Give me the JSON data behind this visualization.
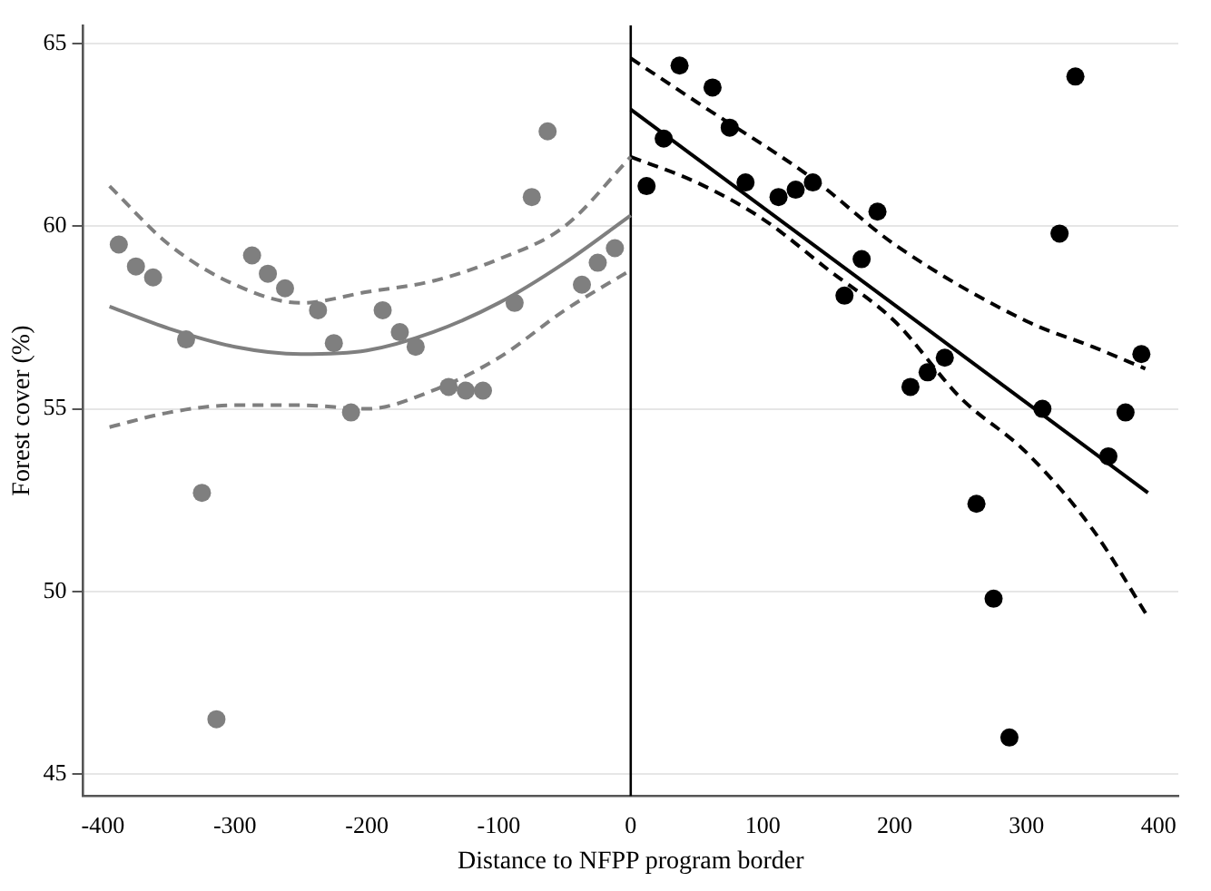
{
  "chart_data": {
    "type": "scatter",
    "xlabel": "Distance to NFPP program border",
    "ylabel": "Forest cover (%)",
    "xlim": [
      -415,
      415
    ],
    "ylim": [
      44.4,
      65.5
    ],
    "xticks": [
      -400,
      -300,
      -200,
      -100,
      0,
      100,
      200,
      300,
      400
    ],
    "yticks": [
      45,
      50,
      55,
      60,
      65
    ],
    "grid": "y",
    "legend": false,
    "marker": "circle",
    "ref_lines": [
      {
        "axis": "x",
        "value": 0,
        "color": "#000000"
      }
    ],
    "series": [
      {
        "type": "scatter",
        "color": "#7f7f7f",
        "x": [
          -388,
          -362,
          -337,
          -314,
          -287,
          -262,
          -237,
          -212,
          -188,
          -163,
          -138,
          -112,
          -88,
          -63,
          -37,
          -12
        ],
        "values": [
          59.5,
          58.6,
          56.9,
          46.5,
          59.2,
          58.3,
          57.7,
          54.9,
          57.7,
          56.7,
          55.6,
          55.5,
          57.9,
          62.6,
          58.4,
          59.4
        ]
      },
      {
        "type": "scatter",
        "color": "#7f7f7f",
        "x": [
          -375,
          -325,
          -275,
          -225,
          -175,
          -125,
          -75,
          -25
        ],
        "values": [
          58.9,
          52.7,
          58.7,
          56.8,
          57.1,
          55.5,
          60.8,
          59.0
        ]
      },
      {
        "type": "line",
        "color": "#7f7f7f",
        "marker": "none",
        "line_style": "solid",
        "x": [
          -395,
          -350,
          -300,
          -250,
          -200,
          -150,
          -100,
          -50,
          0
        ],
        "values": [
          57.8,
          57.2,
          56.7,
          56.5,
          56.6,
          57.1,
          57.9,
          59.0,
          60.3
        ]
      },
      {
        "type": "line",
        "color": "#7f7f7f",
        "marker": "none",
        "line_style": "dashed",
        "x": [
          -395,
          -350,
          -300,
          -250,
          -200,
          -150,
          -100,
          -50,
          0
        ],
        "values": [
          61.1,
          59.5,
          58.4,
          57.9,
          58.2,
          58.5,
          59.1,
          60.0,
          61.9
        ]
      },
      {
        "type": "line",
        "color": "#7f7f7f",
        "marker": "none",
        "line_style": "dashed",
        "x": [
          -395,
          -350,
          -300,
          -250,
          -200,
          -150,
          -100,
          -50,
          0
        ],
        "values": [
          54.5,
          54.9,
          55.1,
          55.1,
          55.0,
          55.5,
          56.4,
          57.7,
          58.8
        ]
      },
      {
        "type": "scatter",
        "color": "#000000",
        "x": [
          12,
          37,
          62,
          87,
          112,
          138,
          162,
          187,
          212,
          238,
          262,
          287,
          312,
          337,
          362,
          387
        ],
        "values": [
          61.1,
          64.4,
          63.8,
          61.2,
          60.8,
          61.2,
          58.1,
          60.4,
          55.6,
          56.4,
          52.4,
          46.0,
          55.0,
          64.1,
          53.7,
          56.5
        ]
      },
      {
        "type": "scatter",
        "color": "#000000",
        "x": [
          25,
          75,
          125,
          175,
          225,
          275,
          325,
          375
        ],
        "values": [
          62.4,
          62.7,
          61.0,
          59.1,
          56.0,
          49.8,
          59.8,
          54.9
        ]
      },
      {
        "type": "line",
        "color": "#000000",
        "marker": "none",
        "line_style": "solid",
        "x": [
          0,
          392
        ],
        "values": [
          63.2,
          52.7
        ]
      },
      {
        "type": "line",
        "color": "#000000",
        "marker": "none",
        "line_style": "dashed",
        "x": [
          0,
          50,
          138,
          200,
          300,
          350,
          390
        ],
        "values": [
          64.6,
          63.4,
          61.3,
          59.5,
          57.4,
          56.7,
          56.1
        ]
      },
      {
        "type": "line",
        "color": "#000000",
        "marker": "none",
        "line_style": "dashed",
        "x": [
          0,
          50,
          100,
          150,
          200,
          250,
          300,
          350,
          392
        ],
        "values": [
          61.9,
          61.2,
          60.2,
          58.8,
          57.4,
          55.3,
          53.8,
          51.7,
          49.3
        ]
      }
    ]
  }
}
